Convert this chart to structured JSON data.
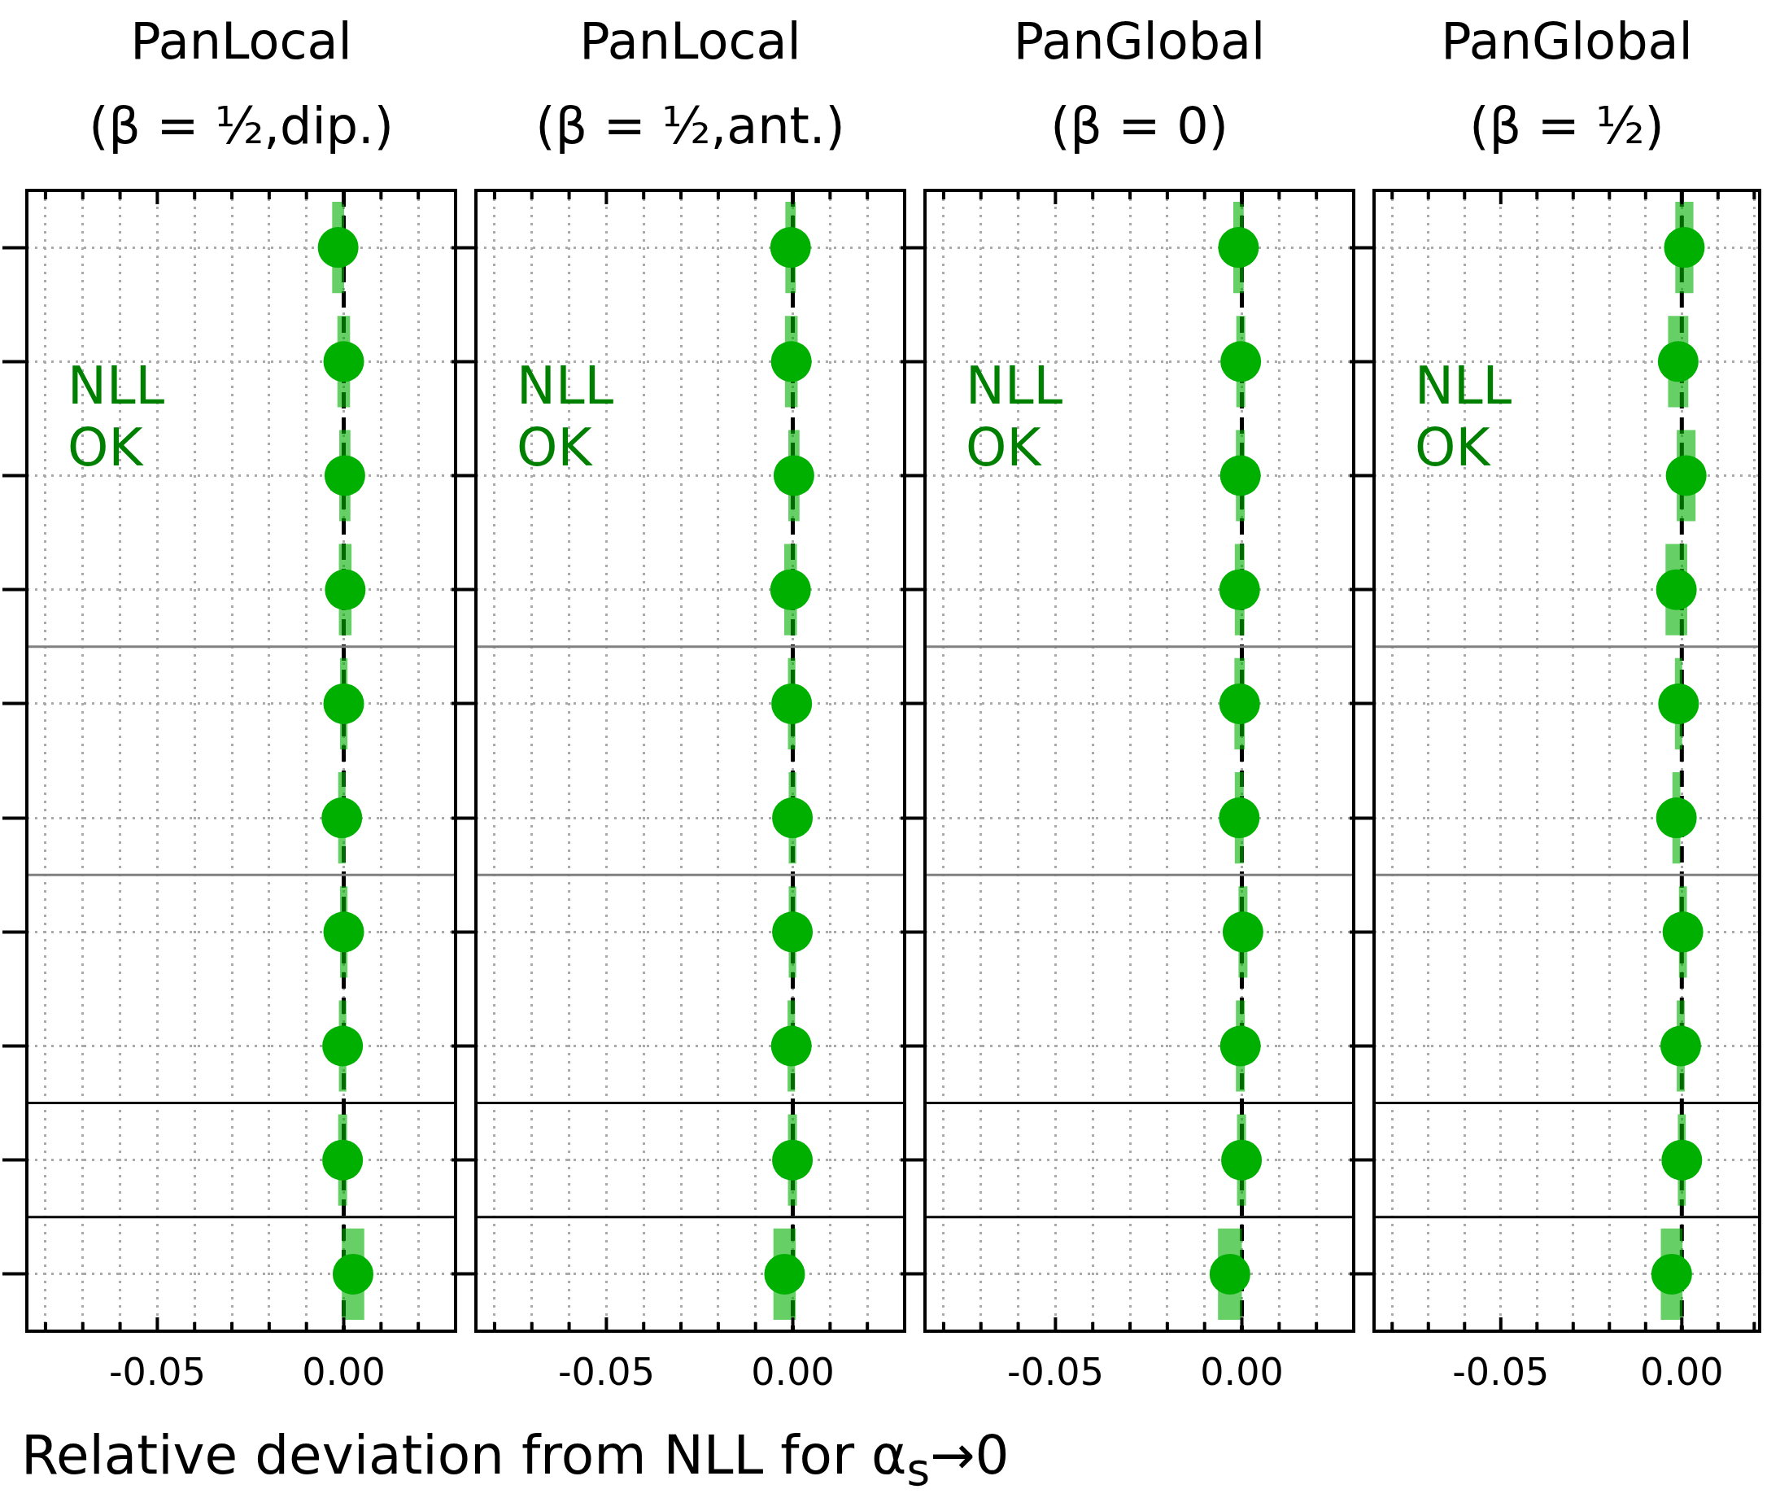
{
  "chart_data": [
    {
      "type": "scatter",
      "orientation": "horizontal",
      "title": "PanLocal",
      "subtitle": "(β = ½,dip.)",
      "xlabel": "Relative deviation from NLL for α$_{s}$→0",
      "annotations": [
        "NLL\nOK"
      ],
      "xlim": [
        -0.085,
        0.03
      ],
      "xticks": [
        {
          "value": -0.08,
          "label": null
        },
        {
          "value": -0.07,
          "label": null
        },
        {
          "value": -0.06,
          "label": null
        },
        {
          "value": -0.05,
          "label": "-0.05"
        },
        {
          "value": -0.04,
          "label": null
        },
        {
          "value": -0.03,
          "label": null
        },
        {
          "value": -0.02,
          "label": null
        },
        {
          "value": -0.01,
          "label": null
        },
        {
          "value": 0,
          "label": "0.00"
        },
        {
          "value": 0.01,
          "label": null
        },
        {
          "value": 0.02,
          "label": null
        }
      ],
      "categories": [
        null,
        null,
        null,
        null,
        null,
        null,
        null,
        null,
        null,
        null
      ],
      "tick_labels": "x",
      "grid": true,
      "marker": "circle",
      "ref_lines": [
        {
          "axis": "x",
          "value": 0,
          "color": "#000000",
          "line_style": "dashed"
        }
      ],
      "color": "#00b000",
      "values": [
        -0.0015,
        0,
        0.0003,
        0.0004,
        0,
        -0.0005,
        0,
        -0.0003,
        -0.0003,
        0.0025
      ],
      "errors": [
        0.0016,
        0.0017,
        0.0015,
        0.0017,
        0.001,
        0.001,
        0.001,
        0.001,
        0.0012,
        0.003
      ]
    },
    {
      "type": "scatter",
      "orientation": "horizontal",
      "title": "PanLocal",
      "subtitle": "(β = ½,ant.)",
      "annotations": [
        "NLL\nOK"
      ],
      "xlim": [
        -0.085,
        0.03
      ],
      "xticks": [
        {
          "value": -0.08,
          "label": null
        },
        {
          "value": -0.07,
          "label": null
        },
        {
          "value": -0.06,
          "label": null
        },
        {
          "value": -0.05,
          "label": "-0.05"
        },
        {
          "value": -0.04,
          "label": null
        },
        {
          "value": -0.03,
          "label": null
        },
        {
          "value": -0.02,
          "label": null
        },
        {
          "value": -0.01,
          "label": null
        },
        {
          "value": 0,
          "label": "0.00"
        },
        {
          "value": 0.01,
          "label": null
        },
        {
          "value": 0.02,
          "label": null
        }
      ],
      "categories": [
        null,
        null,
        null,
        null,
        null,
        null,
        null,
        null,
        null,
        null
      ],
      "tick_labels": "x",
      "grid": true,
      "marker": "circle",
      "ref_lines": [
        {
          "axis": "x",
          "value": 0,
          "color": "#000000",
          "line_style": "dashed"
        }
      ],
      "color": "#00b000",
      "values": [
        -0.0006,
        -0.0004,
        0.0003,
        -0.0006,
        -0.0003,
        -0.0001,
        -0.0001,
        -0.0004,
        -0.0001,
        -0.0022
      ],
      "errors": [
        0.0014,
        0.0017,
        0.0015,
        0.0017,
        0.001,
        0.001,
        0.001,
        0.001,
        0.0012,
        0.003
      ]
    },
    {
      "type": "scatter",
      "orientation": "horizontal",
      "title": "PanGlobal",
      "subtitle": "(β = 0)",
      "annotations": [
        "NLL\nOK"
      ],
      "xlim": [
        -0.085,
        0.03
      ],
      "xticks": [
        {
          "value": -0.08,
          "label": null
        },
        {
          "value": -0.07,
          "label": null
        },
        {
          "value": -0.06,
          "label": null
        },
        {
          "value": -0.05,
          "label": "-0.05"
        },
        {
          "value": -0.04,
          "label": null
        },
        {
          "value": -0.03,
          "label": null
        },
        {
          "value": -0.02,
          "label": null
        },
        {
          "value": -0.01,
          "label": null
        },
        {
          "value": 0,
          "label": "0.00"
        },
        {
          "value": 0.01,
          "label": null
        },
        {
          "value": 0.02,
          "label": null
        }
      ],
      "categories": [
        null,
        null,
        null,
        null,
        null,
        null,
        null,
        null,
        null,
        null
      ],
      "tick_labels": "x",
      "grid": true,
      "marker": "circle",
      "ref_lines": [
        {
          "axis": "x",
          "value": 0,
          "color": "#000000",
          "line_style": "dashed"
        }
      ],
      "color": "#00b000",
      "values": [
        -0.0009,
        -0.0003,
        -0.0004,
        -0.0006,
        -0.0006,
        -0.0007,
        0.0003,
        -0.0004,
        -0.0001,
        -0.0032
      ],
      "errors": [
        0.0014,
        0.0012,
        0.0012,
        0.0013,
        0.0014,
        0.0012,
        0.0012,
        0.0012,
        0.0012,
        0.0032
      ]
    },
    {
      "type": "scatter",
      "orientation": "horizontal",
      "title": "PanGlobal",
      "subtitle": "(β = ½)",
      "annotations": [
        "NLL\nOK"
      ],
      "xlim": [
        -0.085,
        0.0215
      ],
      "xticks": [
        {
          "value": -0.08,
          "label": null
        },
        {
          "value": -0.07,
          "label": null
        },
        {
          "value": -0.06,
          "label": null
        },
        {
          "value": -0.05,
          "label": "-0.05"
        },
        {
          "value": -0.04,
          "label": null
        },
        {
          "value": -0.03,
          "label": null
        },
        {
          "value": -0.02,
          "label": null
        },
        {
          "value": -0.01,
          "label": null
        },
        {
          "value": 0,
          "label": "0.00"
        },
        {
          "value": 0.01,
          "label": null
        },
        {
          "value": 0.02,
          "label": null
        }
      ],
      "categories": [
        null,
        null,
        null,
        null,
        null,
        null,
        null,
        null,
        null,
        null
      ],
      "tick_labels": "x",
      "grid": true,
      "marker": "circle",
      "ref_lines": [
        {
          "axis": "x",
          "value": 0,
          "color": "#000000",
          "line_style": "dashed"
        }
      ],
      "color": "#00b000",
      "values": [
        0.0007,
        -0.001,
        0.0012,
        -0.0015,
        -0.0009,
        -0.0015,
        0.0003,
        -0.0003,
        0,
        -0.0028
      ],
      "errors": [
        0.0025,
        0.0028,
        0.0026,
        0.003,
        0.001,
        0.0011,
        0.0011,
        0.0011,
        0.0011,
        0.003
      ]
    }
  ]
}
